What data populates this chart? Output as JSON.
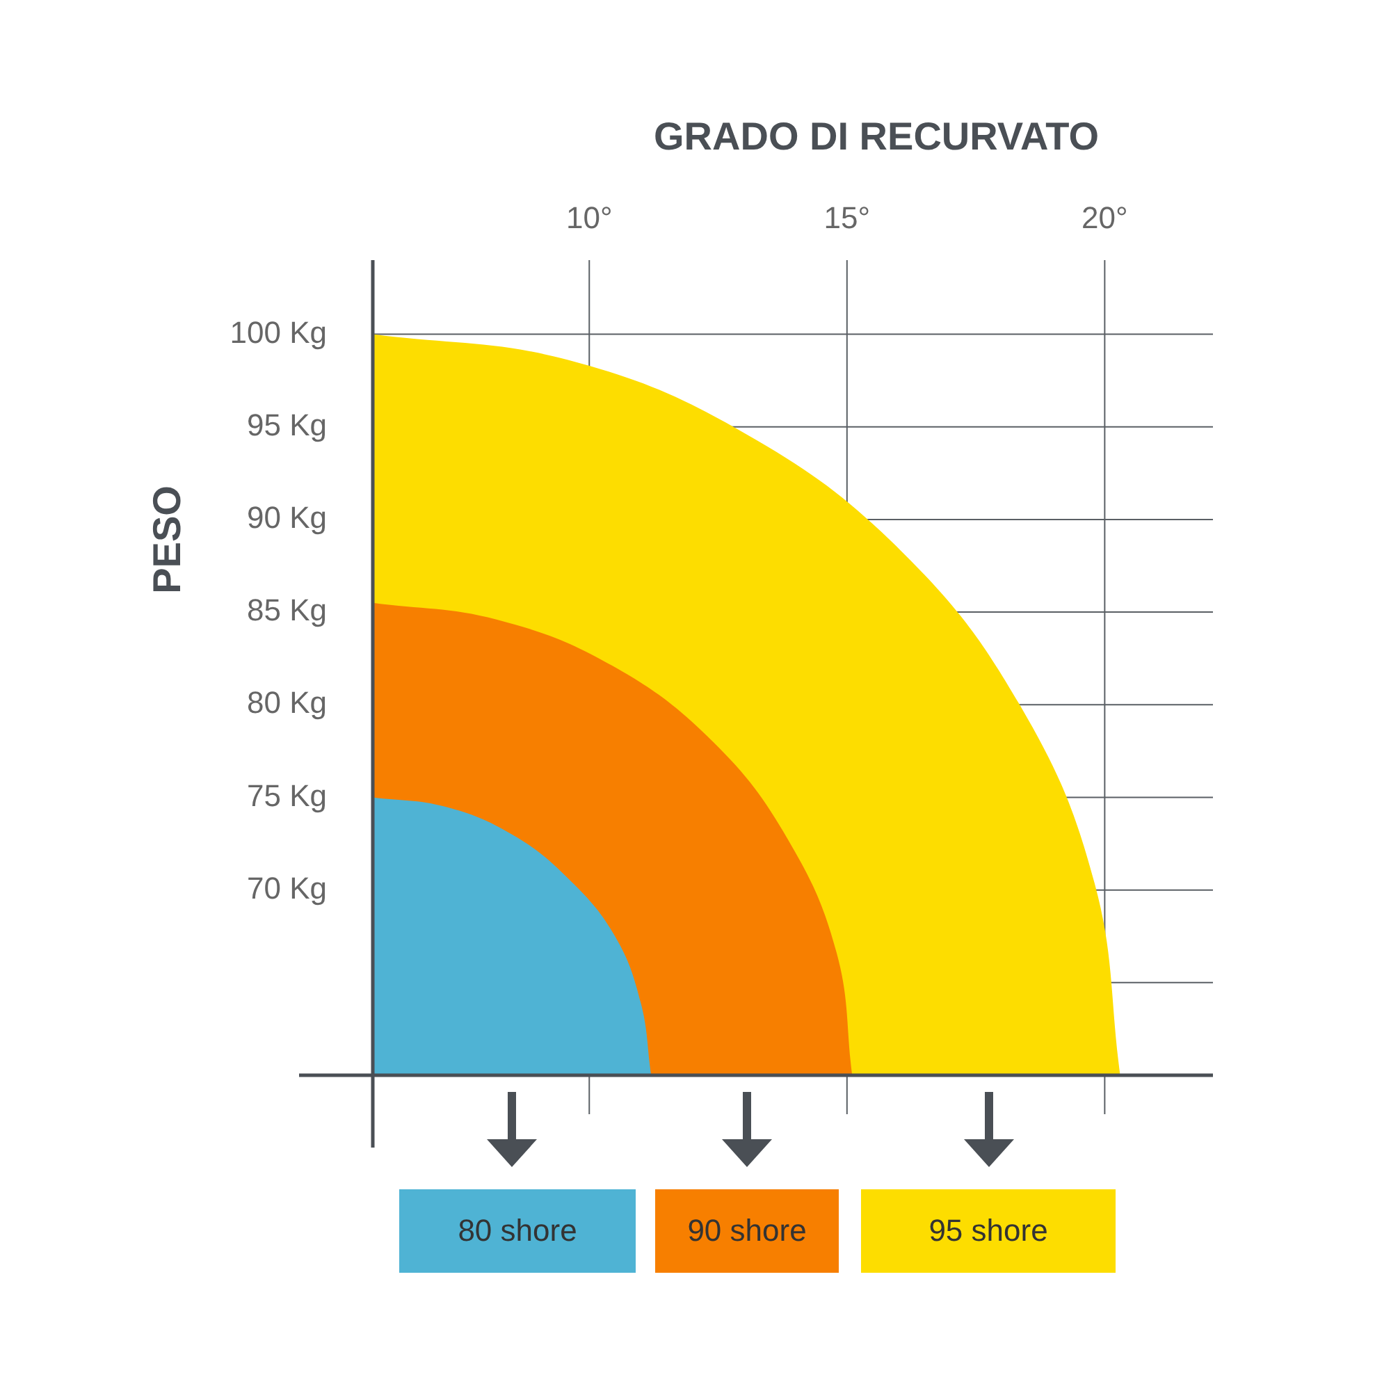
{
  "chart_data": {
    "type": "area",
    "xlabel": "GRADO DI RECURVATO",
    "ylabel": "PESO",
    "xlim": [
      5.8,
      22.1
    ],
    "ylim": [
      60,
      104
    ],
    "xticks": [
      {
        "value": 10,
        "label": "10°"
      },
      {
        "value": 15,
        "label": "15°"
      },
      {
        "value": 20,
        "label": "20°"
      }
    ],
    "yticks": [
      {
        "value": 65,
        "label": null
      },
      {
        "value": 70,
        "label": "70 Kg"
      },
      {
        "value": 75,
        "label": "75 Kg"
      },
      {
        "value": 80,
        "label": "80 Kg"
      },
      {
        "value": 85,
        "label": "85 Kg"
      },
      {
        "value": 90,
        "label": "90 Kg"
      },
      {
        "value": 95,
        "label": "95 Kg"
      },
      {
        "value": 100,
        "label": "100 Kg"
      }
    ],
    "grid": true,
    "legend": "bottom",
    "series": [
      {
        "name": "95 shore",
        "color": "#fddd00",
        "x": [
          5.8,
          9.6,
          13.05,
          16.05,
          18.35,
          19.8,
          20.3
        ],
        "values": [
          100,
          98.6,
          94.6,
          88.3,
          80,
          70.4,
          60
        ]
      },
      {
        "name": "90 shore",
        "color": "#f77f00",
        "x": [
          5.8,
          8.2,
          10.45,
          12.4,
          13.85,
          14.8,
          15.1
        ],
        "values": [
          85.5,
          84.6,
          82.1,
          78,
          72.75,
          66.6,
          60
        ]
      },
      {
        "name": "80 shore",
        "color": "#4fb3d4",
        "x": [
          5.8,
          7.2,
          8.5,
          9.6,
          10.5,
          11.0,
          11.2
        ],
        "values": [
          75,
          74.5,
          73,
          70.6,
          67.5,
          63.9,
          60
        ]
      }
    ]
  }
}
